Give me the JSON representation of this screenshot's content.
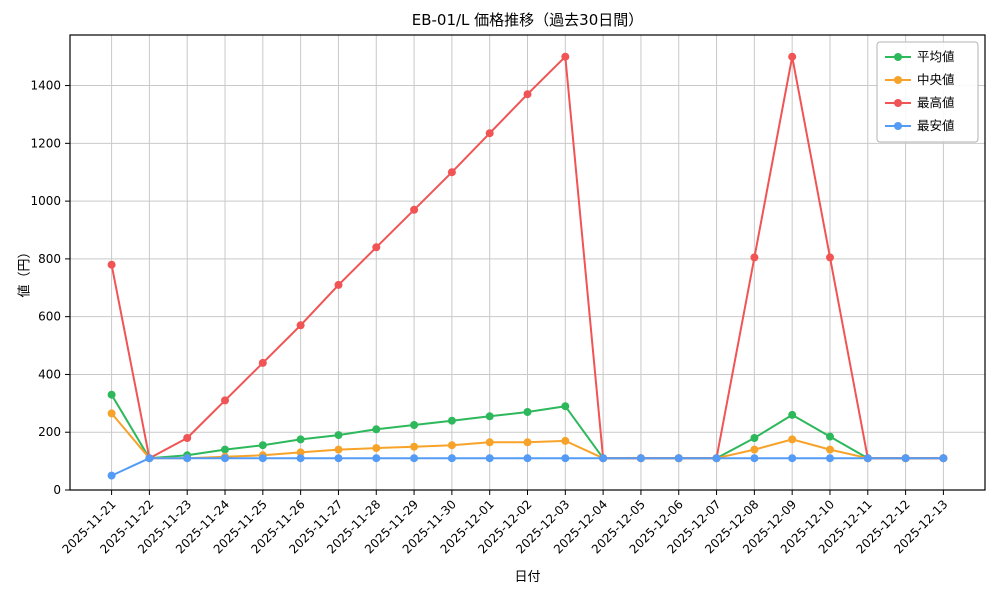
{
  "chart_data": {
    "type": "line",
    "title": "EB-01/L 価格推移（過去30日間）",
    "xlabel": "日付",
    "ylabel": "値（円）",
    "ylim": [
      0,
      1575
    ],
    "yticks": [
      0,
      200,
      400,
      600,
      800,
      1000,
      1200,
      1400
    ],
    "grid": true,
    "legend_position": "upper right",
    "categories": [
      "2025-11-21",
      "2025-11-22",
      "2025-11-23",
      "2025-11-24",
      "2025-11-25",
      "2025-11-26",
      "2025-11-27",
      "2025-11-28",
      "2025-11-29",
      "2025-11-30",
      "2025-12-01",
      "2025-12-02",
      "2025-12-03",
      "2025-12-04",
      "2025-12-05",
      "2025-12-06",
      "2025-12-07",
      "2025-12-08",
      "2025-12-09",
      "2025-12-10",
      "2025-12-11",
      "2025-12-12",
      "2025-12-13"
    ],
    "series": [
      {
        "id": "average",
        "name": "平均値",
        "color": "#2eb85c",
        "values": [
          330,
          110,
          120,
          140,
          155,
          175,
          190,
          210,
          225,
          240,
          255,
          270,
          290,
          110,
          110,
          110,
          110,
          180,
          260,
          185,
          110,
          110,
          110
        ]
      },
      {
        "id": "median",
        "name": "中央値",
        "color": "#f7a329",
        "values": [
          265,
          110,
          110,
          115,
          120,
          130,
          140,
          145,
          150,
          155,
          165,
          165,
          170,
          110,
          110,
          110,
          110,
          140,
          175,
          140,
          110,
          110,
          110
        ]
      },
      {
        "id": "max",
        "name": "最高値",
        "color": "#f05454",
        "values": [
          780,
          110,
          180,
          310,
          440,
          570,
          710,
          840,
          970,
          1100,
          1235,
          1370,
          1500,
          110,
          110,
          110,
          110,
          805,
          1500,
          805,
          110,
          110,
          110
        ]
      },
      {
        "id": "min",
        "name": "最安値",
        "color": "#549bf5",
        "values": [
          50,
          110,
          110,
          110,
          110,
          110,
          110,
          110,
          110,
          110,
          110,
          110,
          110,
          110,
          110,
          110,
          110,
          110,
          110,
          110,
          110,
          110,
          110
        ]
      }
    ],
    "grid_color": "#c9c9c9",
    "frame_color": "#000000",
    "legend_border_color": "#b3b3b3"
  }
}
